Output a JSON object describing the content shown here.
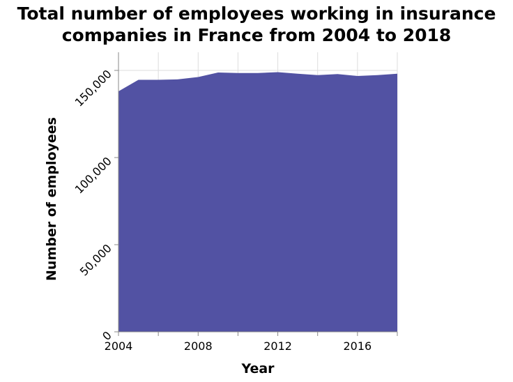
{
  "chart_data": {
    "type": "area",
    "title_lines": [
      "Total number of employees working in insurance",
      "companies in France from 2004 to 2018"
    ],
    "xlabel": "Year",
    "ylabel": "Number of employees",
    "xlim": [
      2004,
      2018
    ],
    "ylim": [
      0,
      150000
    ],
    "x_ticks": [
      2004,
      2006,
      2008,
      2010,
      2012,
      2014,
      2016,
      2018
    ],
    "x_tick_labels": [
      "2004",
      "",
      "2008",
      "",
      "2012",
      "",
      "2016",
      ""
    ],
    "y_ticks": [
      0,
      50000,
      100000,
      150000
    ],
    "y_tick_labels": [
      "0",
      "50,000",
      "100,000",
      "150,000"
    ],
    "grid": true,
    "legend": "none",
    "fill_color": "#5252a3",
    "grid_color": "#dddddd",
    "x": [
      2004,
      2005,
      2006,
      2007,
      2008,
      2009,
      2010,
      2011,
      2012,
      2013,
      2014,
      2015,
      2016,
      2017,
      2018
    ],
    "values": [
      138000,
      144600,
      144600,
      144900,
      146200,
      148800,
      148500,
      148500,
      149000,
      148100,
      147300,
      147900,
      146800,
      147300,
      148100
    ]
  }
}
